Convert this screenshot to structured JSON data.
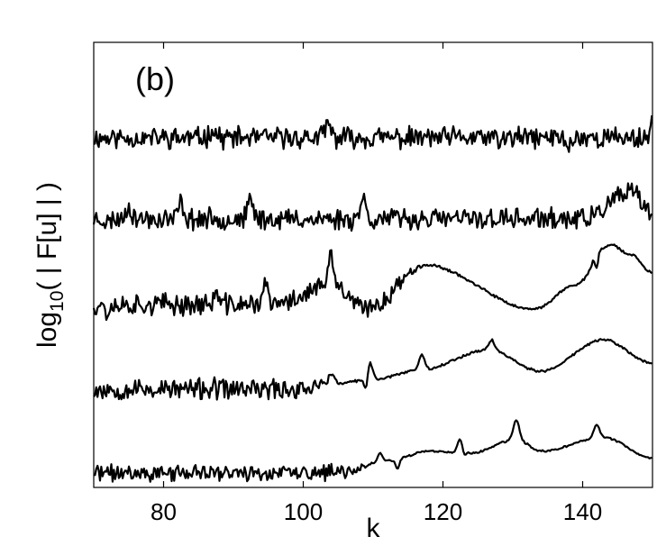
{
  "chart_data": {
    "type": "line",
    "panel_label": "(b)",
    "xlabel": "k",
    "ylabel": {
      "prefix": "log",
      "subscript": "10",
      "suffix": "( | F[u] | )"
    },
    "xlim": [
      70,
      150
    ],
    "xticks": [
      80,
      100,
      120,
      140
    ],
    "yticks": [],
    "grid": false,
    "legend": "none",
    "line_color": "#000000",
    "note": "Five vertically offset spectra; y values are in arbitrary log units (the y axis has no tick labels).",
    "series": [
      {
        "peaks": [
          [
            87,
            1.0
          ],
          [
            103.5,
            1.4
          ],
          [
            150,
            1.6
          ]
        ],
        "dips": [
          [
            138,
            -1.2
          ],
          [
            128,
            -0.6
          ]
        ],
        "smooth": [],
        "noise_until": 150,
        "noise": 0.9,
        "seed": 11,
        "values_note": "flat noisy spectrum"
      },
      {
        "peaks": [
          [
            75,
            1.4
          ],
          [
            82.5,
            1.6
          ],
          [
            92.5,
            1.8
          ],
          [
            108.5,
            2.2
          ]
        ],
        "dips": [
          [
            72,
            -0.5
          ]
        ],
        "smooth": [
          [
            140,
            0.0
          ],
          [
            147,
            2.6
          ],
          [
            150,
            0.6
          ]
        ],
        "noise_until": 150,
        "noise": 0.9,
        "seed": 23,
        "values_note": "noise with peaks, rising hump near k=147"
      },
      {
        "peaks": [
          [
            87.5,
            1.0
          ],
          [
            94.5,
            2.0
          ],
          [
            104,
            2.6
          ],
          [
            142,
            1.6
          ]
        ],
        "dips": [
          [
            72,
            -1.0
          ],
          [
            142,
            -2.6
          ]
        ],
        "smooth": [
          [
            96,
            0.0
          ],
          [
            104,
            2.0
          ],
          [
            109,
            -0.5
          ],
          [
            117.5,
            4.0
          ],
          [
            133,
            -0.5
          ],
          [
            139,
            2.0
          ],
          [
            144,
            6.0
          ],
          [
            147,
            5.0
          ],
          [
            150,
            3.2
          ]
        ],
        "noise_until": 112,
        "noise": 0.9,
        "seed": 37,
        "values_note": "broad hump peaking near k=117.5 and k=144"
      },
      {
        "peaks": [
          [
            104,
            1.2
          ],
          [
            109.5,
            1.8
          ],
          [
            117,
            1.5
          ],
          [
            127,
            1.0
          ]
        ],
        "dips": [
          [
            109,
            -1.6
          ]
        ],
        "smooth": [
          [
            98,
            0.0
          ],
          [
            104,
            0.5
          ],
          [
            110,
            1.0
          ],
          [
            117,
            2.0
          ],
          [
            126.5,
            4.0
          ],
          [
            134,
            1.8
          ],
          [
            143,
            5.0
          ],
          [
            150,
            2.6
          ]
        ],
        "noise_until": 100,
        "noise": 0.9,
        "seed": 53,
        "values_note": "hump peaking near k=126.5, dip near k=134, peak near k=143"
      },
      {
        "peaks": [
          [
            111,
            0.8
          ],
          [
            122.5,
            1.4
          ],
          [
            130.5,
            2.0
          ],
          [
            142,
            1.4
          ]
        ],
        "dips": [
          [
            113.5,
            -1.0
          ],
          [
            123,
            -0.6
          ]
        ],
        "smooth": [
          [
            105,
            0.0
          ],
          [
            112,
            1.2
          ],
          [
            118,
            2.2
          ],
          [
            124,
            2.0
          ],
          [
            130.5,
            3.4
          ],
          [
            134,
            2.2
          ],
          [
            143,
            3.6
          ],
          [
            150,
            1.5
          ]
        ],
        "noise_until": 105,
        "noise": 0.7,
        "seed": 71,
        "values_note": "low noisy baseline rising to peaks near k=130.5 and k=142"
      }
    ]
  }
}
